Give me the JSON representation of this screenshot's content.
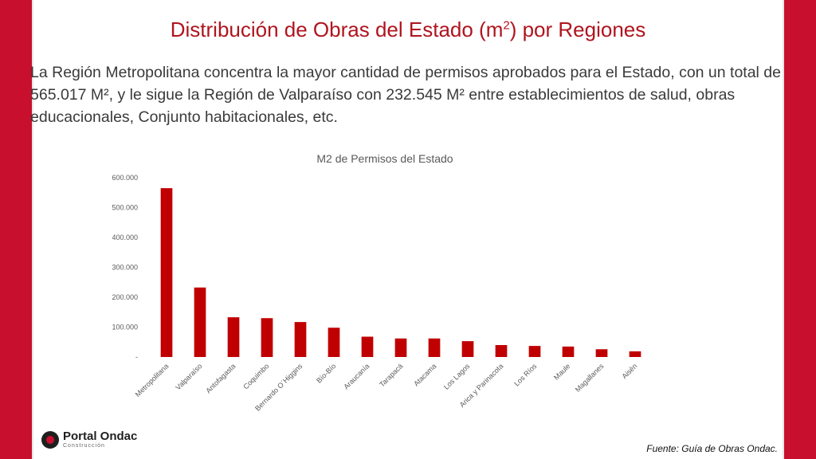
{
  "slide": {
    "title_main": "Distribución de Obras del Estado (m",
    "title_sup": "2",
    "title_end": ") por Regiones",
    "intro": "La Región Metropolitana concentra la mayor cantidad de permisos aprobados para el Estado, con un total de 565.017 M², y le sigue la Región de Valparaíso con 232.545 M² entre establecimientos de salud, obras educacionales, Conjunto habitacionales, etc.",
    "source": "Fuente: Guía de Obras Ondac.",
    "logo_name": "Portal Ondac",
    "logo_sub": "Construcción"
  },
  "colors": {
    "accent": "#c8102e",
    "bar": "#c00000",
    "title": "#b0141e"
  },
  "chart_data": {
    "type": "bar",
    "title": "M2 de Permisos del Estado",
    "categories": [
      "Metropolitana",
      "Valparaíso",
      "Antofagasta",
      "Coquimbo",
      "Bernardo O´Higgins",
      "Bío-Bío",
      "Araucanía",
      "Tarapacá",
      "Atacama",
      "Los Lagos",
      "Arica y Parinacota",
      "Los Ríos",
      "Maule",
      "Magallanes",
      "Aisén"
    ],
    "values": [
      565017,
      232545,
      133000,
      130000,
      117000,
      98000,
      68000,
      62000,
      62000,
      53000,
      40000,
      37000,
      35000,
      26000,
      19000
    ],
    "ylim": [
      0,
      600000
    ],
    "yticks": [
      0,
      100000,
      200000,
      300000,
      400000,
      500000,
      600000
    ],
    "ytick_labels": [
      "-",
      "100.000",
      "200.000",
      "300.000",
      "400.000",
      "500.000",
      "600.000"
    ],
    "grid": false,
    "legend": "none"
  }
}
